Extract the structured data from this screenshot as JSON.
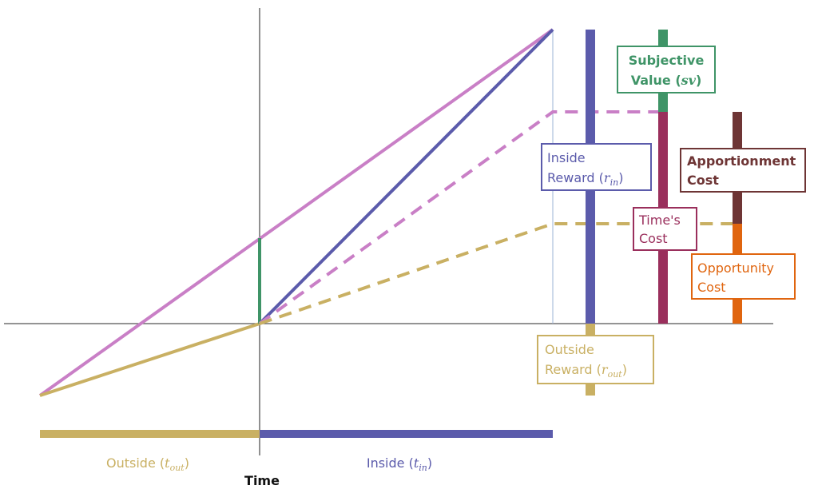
{
  "labels": {
    "subjective_value": {
      "line1": "Subjective",
      "line2_text": "Value (",
      "line2_math": "sv",
      "line2_end": ")"
    },
    "inside_reward": {
      "line1": "Inside",
      "line2_text": "Reward (",
      "var": "r",
      "sub": "in",
      "end": ")"
    },
    "apportionment_cost": {
      "line1": "Apportionment",
      "line2": "Cost"
    },
    "times_cost": {
      "line1": "Time's",
      "line2": "Cost"
    },
    "opportunity_cost": {
      "line1": "Opportunity",
      "line2": "Cost"
    },
    "outside_reward": {
      "line1": "Outside",
      "line2_text": "Reward (",
      "var": "r",
      "sub": "out",
      "end": ")"
    },
    "outside_time": {
      "text": "Outside (",
      "var": "t",
      "sub": "out",
      "end": ")"
    },
    "inside_time": {
      "text": "Inside (",
      "var": "t",
      "sub": "in",
      "end": ")"
    },
    "axis": "Time"
  }
}
